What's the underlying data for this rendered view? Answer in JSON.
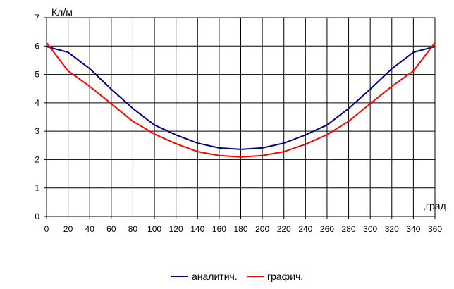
{
  "chart_data": {
    "type": "line",
    "title": "",
    "ylabel": "Кл/м",
    "xlabel": ",град",
    "xlim": [
      0,
      360
    ],
    "ylim": [
      0,
      7
    ],
    "x_ticks": [
      0,
      20,
      40,
      60,
      80,
      100,
      120,
      140,
      160,
      180,
      200,
      220,
      240,
      260,
      280,
      300,
      320,
      340,
      360
    ],
    "y_ticks": [
      0,
      1,
      2,
      3,
      4,
      5,
      6,
      7
    ],
    "grid": true,
    "legend_position": "bottom",
    "x": [
      0,
      20,
      40,
      60,
      80,
      100,
      120,
      140,
      160,
      180,
      200,
      220,
      240,
      260,
      280,
      300,
      320,
      340,
      360
    ],
    "series": [
      {
        "name": "аналитич.",
        "color": "#000080",
        "values": [
          5.98,
          5.78,
          5.2,
          4.48,
          3.8,
          3.22,
          2.87,
          2.58,
          2.41,
          2.36,
          2.41,
          2.58,
          2.87,
          3.22,
          3.8,
          4.48,
          5.2,
          5.78,
          5.98
        ]
      },
      {
        "name": "графич.",
        "color": "#ff0000",
        "values": [
          6.12,
          5.12,
          4.58,
          3.97,
          3.35,
          2.9,
          2.56,
          2.28,
          2.14,
          2.09,
          2.14,
          2.28,
          2.54,
          2.88,
          3.35,
          3.97,
          4.58,
          5.12,
          6.12
        ]
      }
    ]
  }
}
